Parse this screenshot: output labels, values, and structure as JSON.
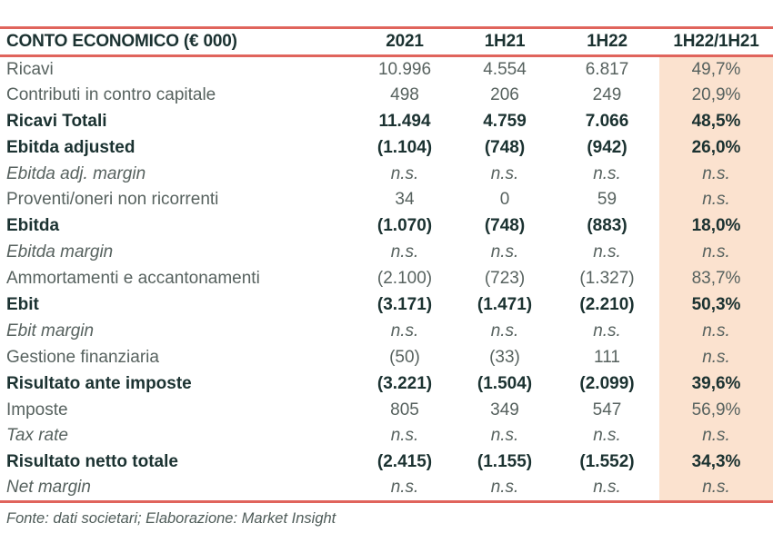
{
  "table": {
    "columns": [
      "CONTO ECONOMICO (€ 000)",
      "2021",
      "1H21",
      "1H22",
      "1H22/1H21"
    ],
    "rows": [
      {
        "label": "Ricavi",
        "style": "normal",
        "values": [
          "10.996",
          "4.554",
          "6.817",
          "49,7%"
        ]
      },
      {
        "label": "Contributi in contro capitale",
        "style": "normal",
        "values": [
          "498",
          "206",
          "249",
          "20,9%"
        ]
      },
      {
        "label": "Ricavi Totali",
        "style": "bold",
        "values": [
          "11.494",
          "4.759",
          "7.066",
          "48,5%"
        ]
      },
      {
        "label": "Ebitda adjusted",
        "style": "bold",
        "values": [
          "(1.104)",
          "(748)",
          "(942)",
          "26,0%"
        ]
      },
      {
        "label": "Ebitda adj. margin",
        "style": "italic",
        "values": [
          "n.s.",
          "n.s.",
          "n.s.",
          "n.s."
        ]
      },
      {
        "label": "Proventi/oneri non ricorrenti",
        "style": "normal",
        "values": [
          "34",
          "0",
          "59",
          "n.s."
        ]
      },
      {
        "label": "Ebitda",
        "style": "bold",
        "values": [
          "(1.070)",
          "(748)",
          "(883)",
          "18,0%"
        ]
      },
      {
        "label": "Ebitda margin",
        "style": "italic",
        "values": [
          "n.s.",
          "n.s.",
          "n.s.",
          "n.s."
        ]
      },
      {
        "label": "Ammortamenti e accantonamenti",
        "style": "normal",
        "values": [
          "(2.100)",
          "(723)",
          "(1.327)",
          "83,7%"
        ]
      },
      {
        "label": "Ebit",
        "style": "bold",
        "values": [
          "(3.171)",
          "(1.471)",
          "(2.210)",
          "50,3%"
        ]
      },
      {
        "label": "Ebit margin",
        "style": "italic",
        "values": [
          "n.s.",
          "n.s.",
          "n.s.",
          "n.s."
        ]
      },
      {
        "label": "Gestione finanziaria",
        "style": "normal",
        "values": [
          "(50)",
          "(33)",
          "111",
          "n.s."
        ]
      },
      {
        "label": "Risultato ante imposte",
        "style": "bold",
        "values": [
          "(3.221)",
          "(1.504)",
          "(2.099)",
          "39,6%"
        ]
      },
      {
        "label": "Imposte",
        "style": "normal",
        "values": [
          "805",
          "349",
          "547",
          "56,9%"
        ]
      },
      {
        "label": "Tax rate",
        "style": "italic",
        "values": [
          "n.s.",
          "n.s.",
          "n.s.",
          "n.s."
        ]
      },
      {
        "label": "Risultato netto totale",
        "style": "bold",
        "values": [
          "(2.415)",
          "(1.155)",
          "(1.552)",
          "34,3%"
        ]
      },
      {
        "label": "Net margin",
        "style": "italic",
        "values": [
          "n.s.",
          "n.s.",
          "n.s.",
          "n.s."
        ]
      }
    ],
    "colors": {
      "accent_line": "#e0645c",
      "ratio_column_bg": "#fbe2cf",
      "text_dark": "#1b3231",
      "text_regular": "#57625f"
    }
  },
  "footer": {
    "source_note": "Fonte: dati societari; Elaborazione: Market Insight"
  }
}
